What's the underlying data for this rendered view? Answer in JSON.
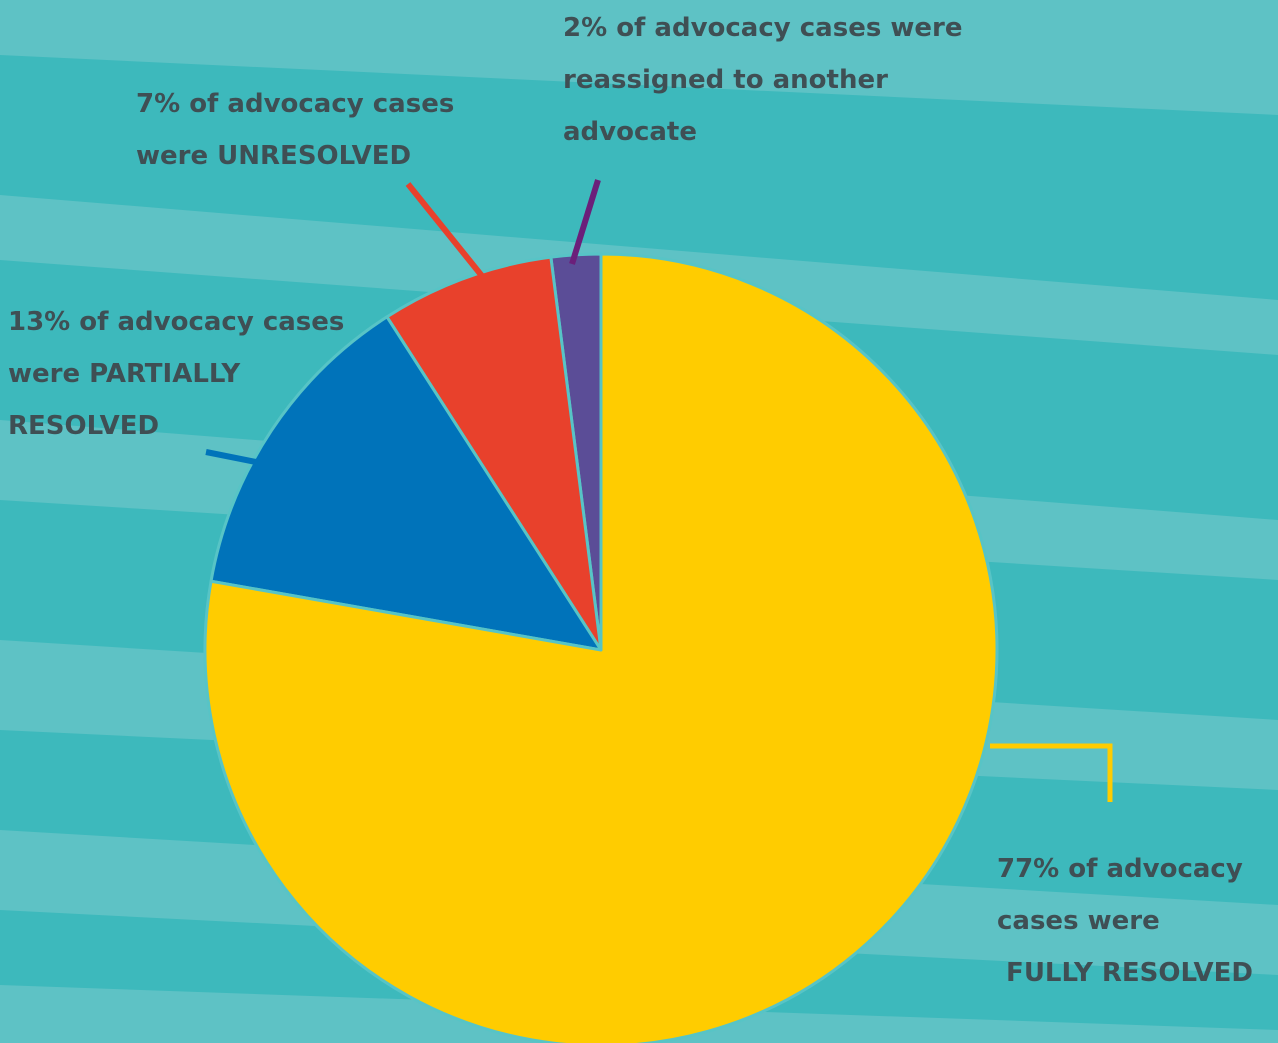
{
  "chart_data": {
    "type": "pie",
    "title": "",
    "start": "12-o'clock",
    "direction": "counterclockwise",
    "slices": [
      {
        "value": 2,
        "color": "#5b4d97",
        "leader": "#6b1f7a",
        "label": [
          "2% of advocacy cases were",
          "reassigned to another",
          "advocate"
        ]
      },
      {
        "value": 7,
        "color": "#e8412c",
        "leader": "#e8412c",
        "label": [
          "7% of advocacy cases",
          "were UNRESOLVED"
        ]
      },
      {
        "value": 13,
        "color": "#0073ba",
        "leader": "#0073ba",
        "label": [
          "13% of advocacy cases",
          "were PARTIALLY",
          "RESOLVED"
        ]
      },
      {
        "value": 77,
        "color": "#ffcc00",
        "leader": "#ffcc00",
        "label": [
          "77% of advocacy",
          "cases were",
          " FULLY RESOLVED"
        ]
      }
    ]
  },
  "colors": {
    "background": "#3db9bc",
    "background_stripe": "#5ec2c5",
    "label_text": "#3f4f54",
    "slice_border": "#57c4c6"
  }
}
